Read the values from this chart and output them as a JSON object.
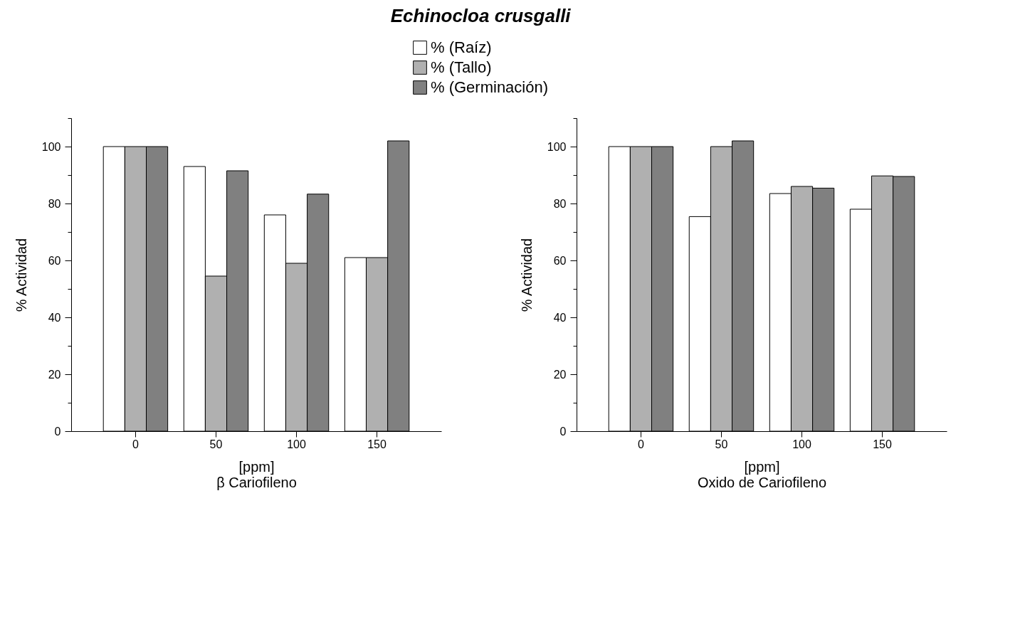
{
  "chart_data": [
    {
      "type": "bar",
      "title": "Echinocloa crusgalli",
      "xlabel": "[ppm]\nβ Cariofileno",
      "ylabel": "% Actividad",
      "categories": [
        "0",
        "50",
        "100",
        "150"
      ],
      "series": [
        {
          "name": "% (Raíz)",
          "color": "#ffffff",
          "values": [
            100,
            93,
            76,
            61
          ]
        },
        {
          "name": "% (Tallo)",
          "color": "#b0b0b0",
          "values": [
            100,
            54.5,
            59,
            61
          ]
        },
        {
          "name": "% (Germinación)",
          "color": "#808080",
          "values": [
            100,
            91.5,
            83.3,
            102
          ]
        }
      ],
      "ylim": [
        0,
        110
      ],
      "yticks": [
        0,
        {
          "value": 10,
          "label": null
        },
        20,
        {
          "value": 30,
          "label": null
        },
        40,
        {
          "value": 50,
          "label": null
        },
        60,
        {
          "value": 70,
          "label": null
        },
        80,
        {
          "value": 90,
          "label": null
        },
        100,
        {
          "value": 110,
          "label": null
        }
      ],
      "legend": "top"
    },
    {
      "type": "bar",
      "xlabel": "[ppm]\nOxido de Cariofileno",
      "ylabel": "% Actividad",
      "categories": [
        "0",
        "50",
        "100",
        "150"
      ],
      "series": [
        {
          "name": "% (Raíz)",
          "color": "#ffffff",
          "values": [
            100,
            75.4,
            83.5,
            78
          ]
        },
        {
          "name": "% (Tallo)",
          "color": "#b0b0b0",
          "values": [
            100,
            100,
            86,
            89.7
          ]
        },
        {
          "name": "% (Germinación)",
          "color": "#808080",
          "values": [
            100,
            102,
            85.4,
            89.5
          ]
        }
      ],
      "ylim": [
        0,
        110
      ],
      "yticks": [
        0,
        {
          "value": 10,
          "label": null
        },
        20,
        {
          "value": 30,
          "label": null
        },
        40,
        {
          "value": 50,
          "label": null
        },
        60,
        {
          "value": 70,
          "label": null
        },
        80,
        {
          "value": 90,
          "label": null
        },
        100,
        {
          "value": 110,
          "label": null
        }
      ],
      "legend": "top"
    }
  ]
}
